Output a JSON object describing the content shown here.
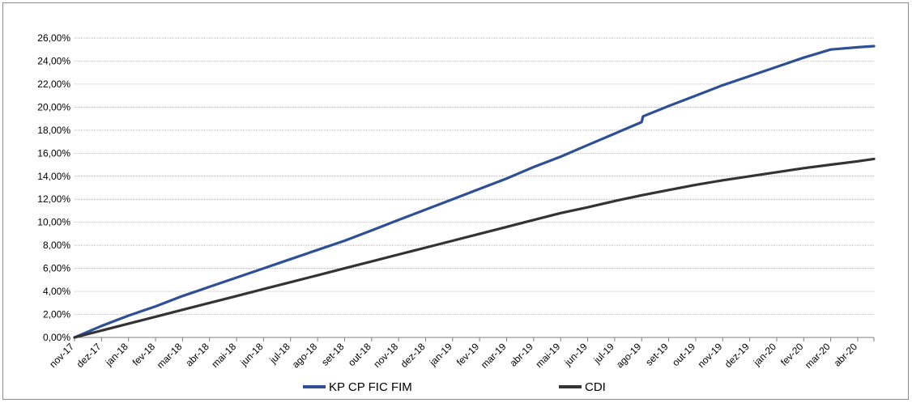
{
  "chart_data": {
    "type": "line",
    "title": "",
    "xlabel": "",
    "ylabel": "",
    "ylim": [
      0,
      26
    ],
    "y_ticks": [
      "0,00%",
      "2,00%",
      "4,00%",
      "6,00%",
      "8,00%",
      "10,00%",
      "12,00%",
      "14,00%",
      "16,00%",
      "18,00%",
      "20,00%",
      "22,00%",
      "24,00%",
      "26,00%"
    ],
    "grid": true,
    "legend_position": "bottom",
    "categories": [
      "nov-17",
      "dez-17",
      "jan-18",
      "fev-18",
      "mar-18",
      "abr-18",
      "mai-18",
      "jun-18",
      "jul-18",
      "ago-18",
      "set-18",
      "out-18",
      "nov-18",
      "dez-18",
      "jan-19",
      "fev-19",
      "mar-19",
      "abr-19",
      "mai-19",
      "jun-19",
      "jul-19",
      "ago-19",
      "set-19",
      "out-19",
      "nov-19",
      "dez-19",
      "jan-20",
      "fev-20",
      "mar-20",
      "abr-20"
    ],
    "series": [
      {
        "name": "KP CP FIC FIM",
        "color": "#2f4f94",
        "x": [
          0,
          1,
          2,
          3,
          4,
          5,
          6,
          7,
          8,
          9,
          10,
          11,
          12,
          13,
          14,
          15,
          16,
          17,
          18,
          19,
          20,
          21,
          21.05,
          22,
          23,
          24,
          25,
          26,
          27,
          28,
          29,
          29.6
        ],
        "values": [
          0.0,
          1.0,
          1.9,
          2.7,
          3.6,
          4.4,
          5.2,
          6.0,
          6.8,
          7.6,
          8.4,
          9.3,
          10.2,
          11.1,
          12.0,
          12.9,
          13.8,
          14.8,
          15.7,
          16.7,
          17.7,
          18.7,
          19.2,
          20.1,
          21.0,
          21.9,
          22.7,
          23.5,
          24.3,
          25.0,
          25.2,
          25.3
        ]
      },
      {
        "name": "CDI",
        "color": "#333333",
        "x": [
          0,
          1,
          2,
          3,
          4,
          5,
          6,
          7,
          8,
          9,
          10,
          11,
          12,
          13,
          14,
          15,
          16,
          17,
          18,
          19,
          20,
          21,
          22,
          23,
          24,
          25,
          26,
          27,
          28,
          29,
          29.6
        ],
        "values": [
          0.0,
          0.6,
          1.2,
          1.8,
          2.4,
          3.0,
          3.6,
          4.2,
          4.8,
          5.4,
          6.0,
          6.6,
          7.2,
          7.8,
          8.4,
          9.0,
          9.6,
          10.2,
          10.8,
          11.3,
          11.85,
          12.35,
          12.8,
          13.25,
          13.65,
          14.0,
          14.35,
          14.7,
          15.0,
          15.3,
          15.5
        ]
      }
    ]
  }
}
